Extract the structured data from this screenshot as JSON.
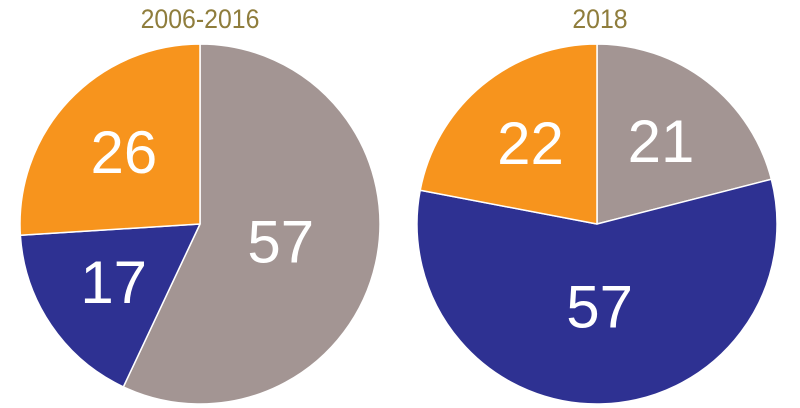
{
  "chart_data": [
    {
      "type": "pie",
      "title": "2006-2016",
      "slices": [
        {
          "label": "57",
          "value": 57,
          "color": "#a39593"
        },
        {
          "label": "17",
          "value": 17,
          "color": "#2e3192"
        },
        {
          "label": "26",
          "value": 26,
          "color": "#f7941d"
        }
      ],
      "start_angle_deg": 0,
      "direction": "clockwise",
      "legend": "none"
    },
    {
      "type": "pie",
      "title": "2018",
      "slices": [
        {
          "label": "21",
          "value": 21,
          "color": "#a39593"
        },
        {
          "label": "57",
          "value": 57,
          "color": "#2e3192"
        },
        {
          "label": "22",
          "value": 22,
          "color": "#f7941d"
        }
      ],
      "start_angle_deg": 0,
      "direction": "clockwise",
      "legend": "none"
    }
  ]
}
